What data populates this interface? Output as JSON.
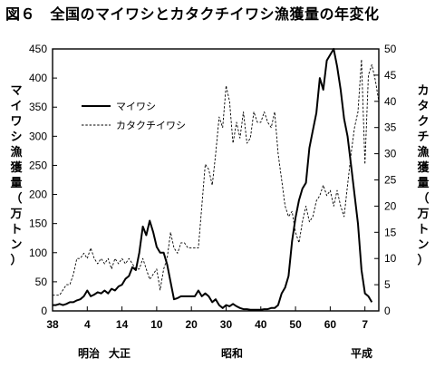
{
  "figure": {
    "title": "図６　全国のマイワシとカタクチイワシ漁獲量の年変化",
    "ylabel_left": "マイワシ漁獲量（万トン）",
    "ylabel_right": "カタクチ漁獲量（万トン）",
    "eras": [
      "明治",
      "大正",
      "昭和",
      "平成"
    ]
  },
  "chart_data": {
    "type": "line",
    "x_axis": {
      "tick_labels": [
        "38",
        "4",
        "14",
        "10",
        "20",
        "30",
        "40",
        "50",
        "60",
        "7"
      ],
      "tick_years": [
        1905,
        1915,
        1925,
        1935,
        1945,
        1955,
        1965,
        1975,
        1985,
        1995
      ],
      "range": [
        1905,
        1999
      ]
    },
    "y_left": {
      "label": "マイワシ漁獲量（万トン）",
      "range": [
        0,
        450
      ],
      "ticks": [
        0,
        50,
        100,
        150,
        200,
        250,
        300,
        350,
        400,
        450
      ]
    },
    "y_right": {
      "label": "カタクチ漁獲量（万トン）",
      "range": [
        0,
        50
      ],
      "ticks": [
        0,
        5,
        10,
        15,
        20,
        25,
        30,
        35,
        40,
        45,
        50
      ]
    },
    "legend": {
      "placement": "top-left"
    },
    "series": [
      {
        "name": "マイワシ",
        "axis": "left",
        "style": "solid",
        "x": [
          1905,
          1906,
          1907,
          1908,
          1909,
          1910,
          1911,
          1912,
          1913,
          1914,
          1915,
          1916,
          1917,
          1918,
          1919,
          1920,
          1921,
          1922,
          1923,
          1924,
          1925,
          1926,
          1927,
          1928,
          1929,
          1930,
          1931,
          1932,
          1933,
          1934,
          1935,
          1936,
          1937,
          1938,
          1939,
          1940,
          1941,
          1942,
          1943,
          1944,
          1945,
          1946,
          1947,
          1948,
          1949,
          1950,
          1951,
          1952,
          1953,
          1954,
          1955,
          1956,
          1957,
          1958,
          1959,
          1960,
          1961,
          1962,
          1963,
          1964,
          1965,
          1966,
          1967,
          1968,
          1969,
          1970,
          1971,
          1972,
          1973,
          1974,
          1975,
          1976,
          1977,
          1978,
          1979,
          1980,
          1981,
          1982,
          1983,
          1984,
          1985,
          1986,
          1987,
          1988,
          1989,
          1990,
          1991,
          1992,
          1993,
          1994,
          1995,
          1996,
          1997
        ],
        "y": [
          10,
          10,
          12,
          10,
          12,
          15,
          15,
          18,
          20,
          25,
          35,
          25,
          28,
          32,
          30,
          35,
          30,
          38,
          35,
          42,
          45,
          55,
          60,
          75,
          70,
          100,
          145,
          130,
          155,
          135,
          110,
          100,
          100,
          80,
          50,
          20,
          22,
          25,
          25,
          25,
          25,
          25,
          35,
          25,
          30,
          25,
          15,
          20,
          10,
          5,
          10,
          8,
          12,
          8,
          5,
          3,
          3,
          2,
          2,
          2,
          2,
          3,
          3,
          5,
          5,
          10,
          30,
          40,
          60,
          120,
          160,
          190,
          210,
          220,
          280,
          310,
          340,
          400,
          380,
          430,
          440,
          450,
          420,
          380,
          330,
          300,
          250,
          200,
          150,
          70,
          30,
          25,
          15
        ]
      },
      {
        "name": "カタクチイワシ",
        "axis": "right",
        "style": "dashed",
        "x": [
          1905,
          1906,
          1907,
          1908,
          1909,
          1910,
          1911,
          1912,
          1913,
          1914,
          1915,
          1916,
          1917,
          1918,
          1919,
          1920,
          1921,
          1922,
          1923,
          1924,
          1925,
          1926,
          1927,
          1928,
          1929,
          1930,
          1931,
          1932,
          1933,
          1934,
          1935,
          1936,
          1937,
          1938,
          1939,
          1940,
          1941,
          1942,
          1943,
          1944,
          1945,
          1946,
          1947,
          1948,
          1949,
          1950,
          1951,
          1952,
          1953,
          1954,
          1955,
          1956,
          1957,
          1958,
          1959,
          1960,
          1961,
          1962,
          1963,
          1964,
          1965,
          1966,
          1967,
          1968,
          1969,
          1970,
          1971,
          1972,
          1973,
          1974,
          1975,
          1976,
          1977,
          1978,
          1979,
          1980,
          1981,
          1982,
          1983,
          1984,
          1985,
          1986,
          1987,
          1988,
          1989,
          1990,
          1991,
          1992,
          1993,
          1994,
          1995,
          1996,
          1997,
          1998,
          1999
        ],
        "y": [
          3,
          3,
          3,
          4,
          5,
          5,
          7,
          10,
          10,
          11,
          10,
          12,
          10,
          9,
          10,
          9,
          10,
          8,
          10,
          9,
          10,
          9,
          10,
          9,
          8,
          8,
          10,
          8,
          6,
          7,
          8,
          4,
          8,
          10,
          15,
          12,
          11,
          13,
          13,
          12,
          12,
          12,
          12,
          20,
          28,
          27,
          24,
          30,
          37,
          35,
          43,
          40,
          32,
          36,
          33,
          38,
          32,
          33,
          38,
          36,
          36,
          38,
          36,
          35,
          38,
          30,
          25,
          20,
          18,
          19,
          15,
          13,
          17,
          20,
          17,
          18,
          21,
          22,
          24,
          22,
          23,
          20,
          23,
          20,
          18,
          24,
          30,
          35,
          38,
          48,
          28,
          45,
          47,
          44,
          40
        ]
      }
    ]
  }
}
